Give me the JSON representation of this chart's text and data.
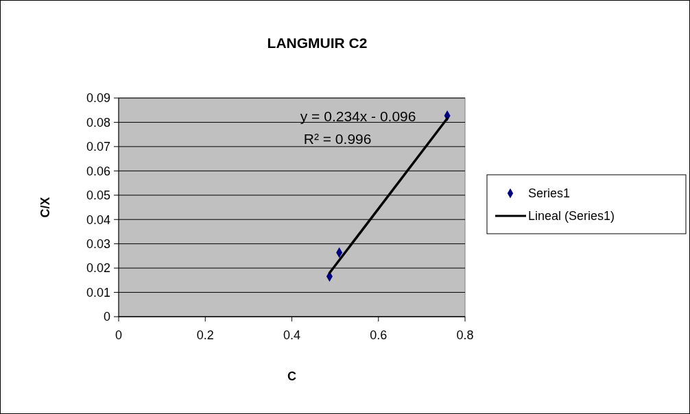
{
  "chart_data": {
    "type": "scatter",
    "title": "LANGMUIR C2",
    "xlabel": "C",
    "ylabel": "C/X",
    "xlim": [
      0,
      0.8
    ],
    "xticks": [
      0,
      0.2,
      0.4,
      0.6,
      0.8
    ],
    "ylim": [
      0,
      0.09
    ],
    "yticks": [
      0,
      0.01,
      0.02,
      0.03,
      0.04,
      0.05,
      0.06,
      0.07,
      0.08,
      0.09
    ],
    "grid": "y",
    "legend": "right",
    "marker": "diamond",
    "series": [
      {
        "name": "Series1",
        "color": "#000080",
        "x": [
          0.487,
          0.5095,
          0.759
        ],
        "values": [
          0.0166,
          0.0264,
          0.0827
        ]
      },
      {
        "name": "Lineal (Series1)",
        "type": "line",
        "marker": "none",
        "line_style": "solid",
        "color": "#000000",
        "x": [
          0.487,
          0.759
        ],
        "values": [
          0.018,
          0.0816
        ]
      }
    ],
    "annotations": [
      "y = 0.234x - 0.096",
      "R² = 0.996"
    ]
  }
}
